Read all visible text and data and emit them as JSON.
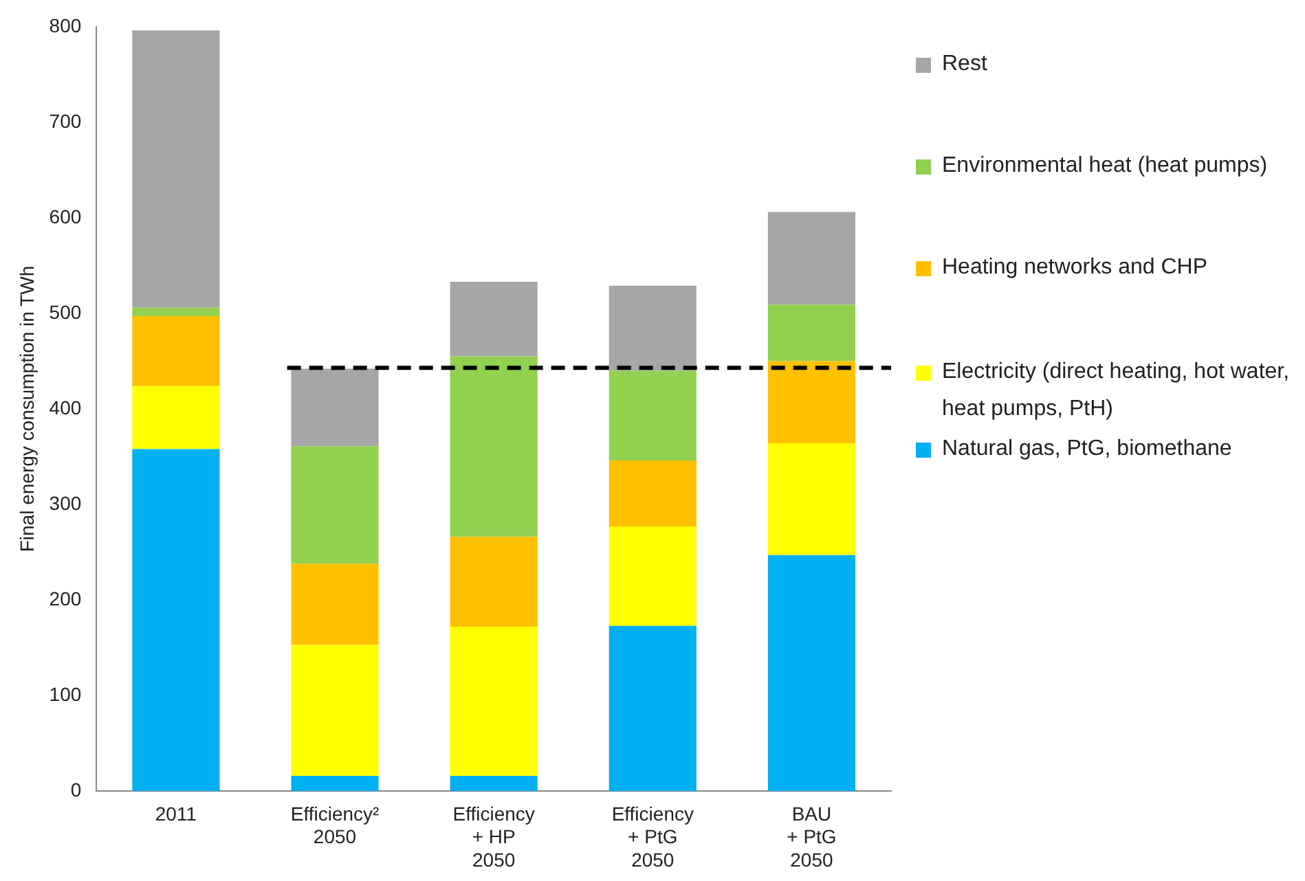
{
  "chart_data": {
    "type": "bar",
    "stacked": true,
    "ylabel": "Final energy consumption in TWh",
    "categories": [
      "2011",
      "Efficiency²\n2050",
      "Efficiency\n+ HP\n2050",
      "Efficiency\n+ PtG\n2050",
      "BAU\n+ PtG\n2050"
    ],
    "series": [
      {
        "name": "Natural gas, PtG, biomethane",
        "color": "#00b0f0",
        "values": [
          358,
          16,
          16,
          173,
          247
        ]
      },
      {
        "name": "Electricity (direct heating, hot water, heat pumps, PtH)",
        "color": "#ffff00",
        "values": [
          66,
          137,
          156,
          104,
          117
        ]
      },
      {
        "name": "Heating networks and CHP",
        "color": "#ffc000",
        "values": [
          73,
          85,
          94,
          69,
          86
        ]
      },
      {
        "name": "Environmental heat (heat pumps)",
        "color": "#92d050",
        "values": [
          9,
          123,
          189,
          94,
          59
        ]
      },
      {
        "name": "Rest",
        "color": "#a6a6a6",
        "values": [
          290,
          81,
          78,
          89,
          97
        ]
      }
    ],
    "ylim": [
      0,
      800
    ],
    "yticks": [
      0,
      100,
      200,
      300,
      400,
      500,
      600,
      700,
      800
    ],
    "grid": false,
    "legend": "right",
    "ref_lines": [
      {
        "axis": "y",
        "value": 443,
        "color": "#000000",
        "line_style": "dashed"
      }
    ]
  }
}
